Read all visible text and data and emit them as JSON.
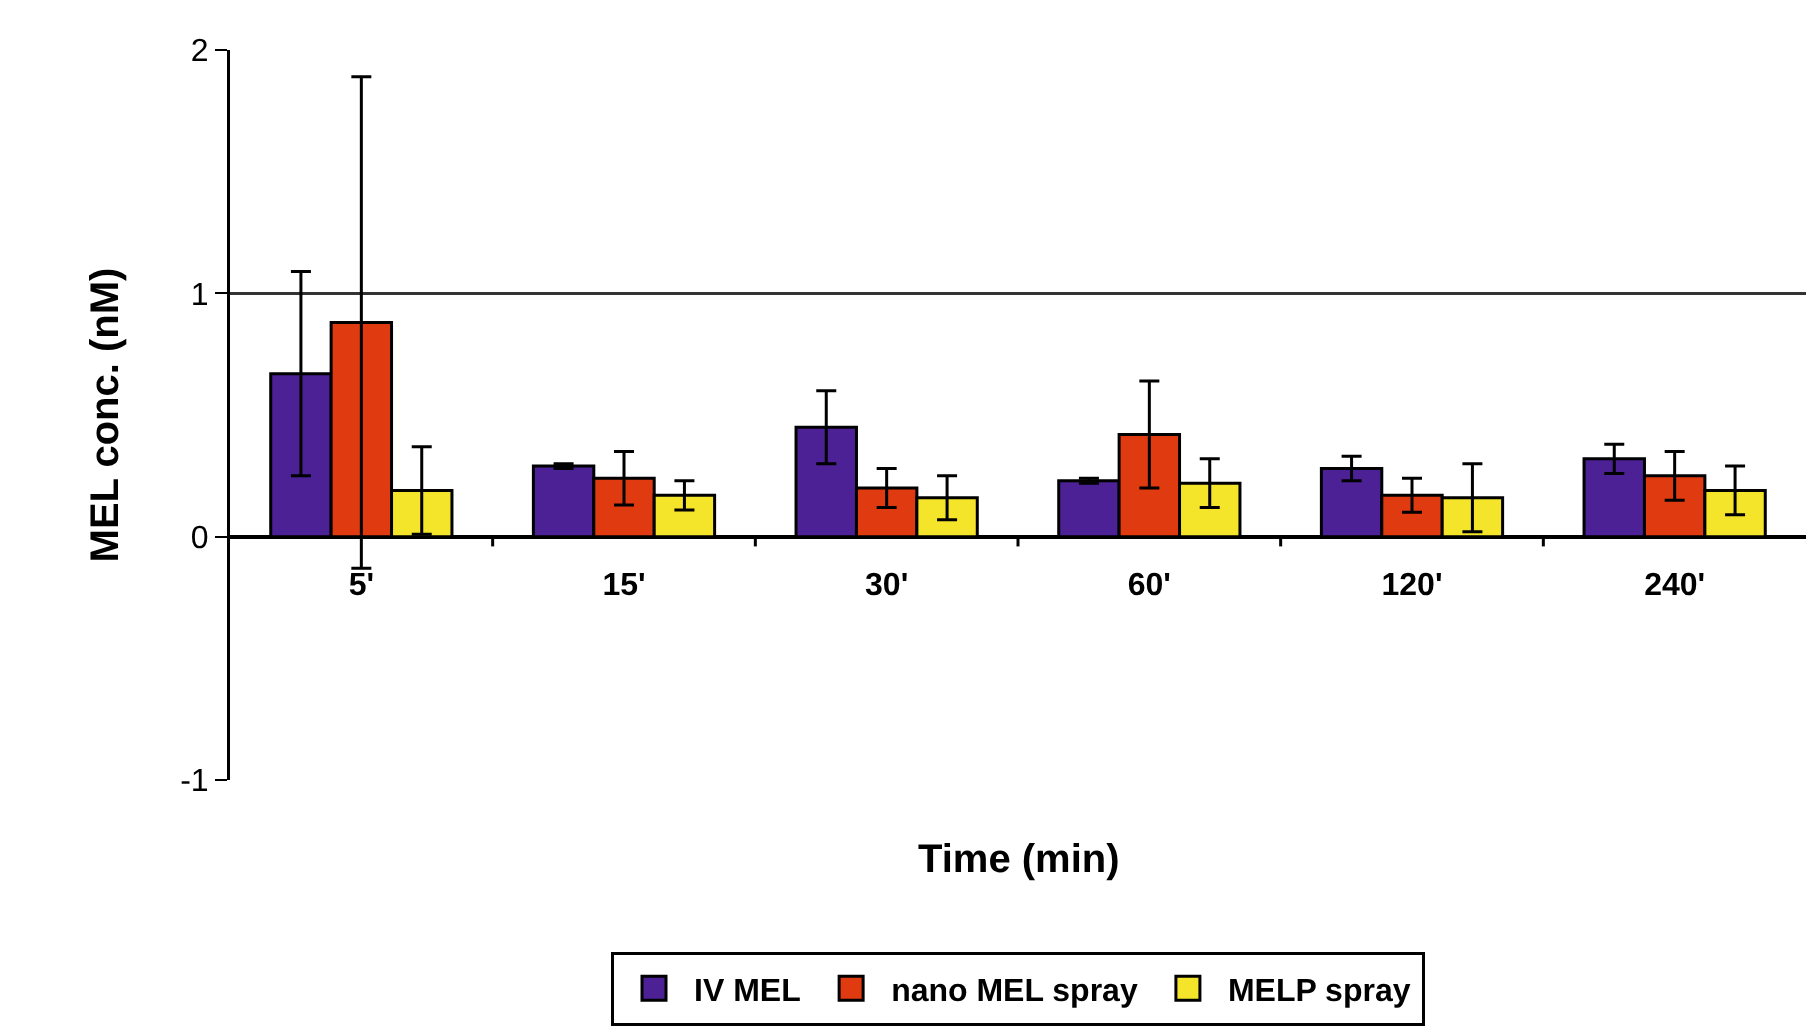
{
  "chart_data": {
    "type": "bar",
    "xlabel": "Time (min)",
    "ylabel": "MEL conc. (nM)",
    "categories": [
      "5'",
      "15'",
      "30'",
      "60'",
      "120'",
      "240'"
    ],
    "series": [
      {
        "name": "IV MEL",
        "color": "#4b2195",
        "values": [
          0.67,
          0.29,
          0.45,
          0.23,
          0.28,
          0.32
        ],
        "errors": [
          0.42,
          0.01,
          0.15,
          0.01,
          0.05,
          0.06
        ]
      },
      {
        "name": "nano MEL spray",
        "color": "#e03a10",
        "values": [
          0.88,
          0.24,
          0.2,
          0.42,
          0.17,
          0.25
        ],
        "errors": [
          1.01,
          0.11,
          0.08,
          0.22,
          0.07,
          0.1
        ]
      },
      {
        "name": "MELP spray",
        "color": "#f5e52a",
        "values": [
          0.19,
          0.17,
          0.16,
          0.22,
          0.16,
          0.19
        ],
        "errors": [
          0.18,
          0.06,
          0.09,
          0.1,
          0.14,
          0.1
        ]
      }
    ],
    "ylim": [
      -1,
      2
    ],
    "yticks": [
      -1,
      0,
      1,
      2
    ],
    "grid": "y",
    "legend": "bottom"
  }
}
